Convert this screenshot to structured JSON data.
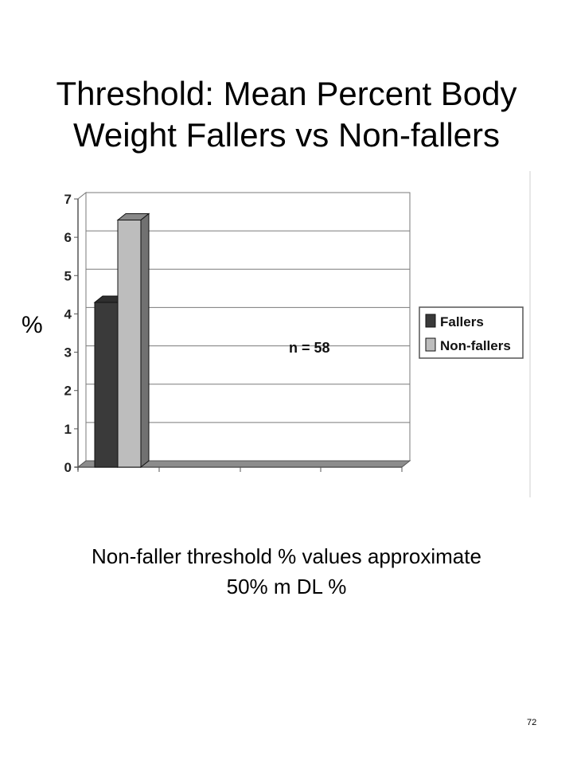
{
  "slide": {
    "title_lines": [
      "Threshold: Mean Percent Body",
      "Weight Fallers vs Non-fallers"
    ],
    "y_unit": "%",
    "caption_lines": [
      "Non-faller threshold % values approximate",
      "50% m DL %"
    ],
    "page_number": "72"
  },
  "chart_data": {
    "type": "bar",
    "style": "3d-clustered-column",
    "categories": [
      ""
    ],
    "series": [
      {
        "name": "Fallers",
        "values": [
          4.3
        ],
        "color": "#3a3a3a"
      },
      {
        "name": "Non-fallers",
        "values": [
          6.45
        ],
        "color": "#bdbdbd"
      }
    ],
    "annotation": "n = 58",
    "ylim": [
      0,
      7
    ],
    "yticks": [
      "0",
      "1",
      "2",
      "3",
      "4",
      "5",
      "6",
      "7"
    ],
    "grid": true,
    "legend_position": "right",
    "title": "",
    "xlabel": "",
    "ylabel": "%"
  }
}
